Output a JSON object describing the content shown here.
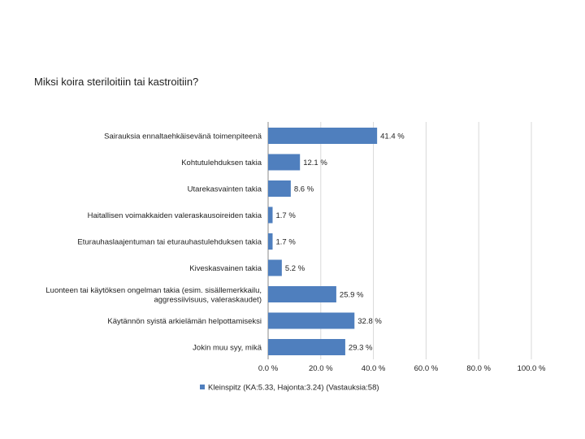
{
  "question": "Miksi koira steriloitiin tai kastroitiin?",
  "chart_data": {
    "type": "bar",
    "orientation": "horizontal",
    "categories": [
      [
        "Sairauksia ennaltaehkäisevänä toimenpiteenä"
      ],
      [
        "Kohtutulehduksen takia"
      ],
      [
        "Utarekasvainten takia"
      ],
      [
        "Haitallisen voimakkaiden valeraskausoireiden takia"
      ],
      [
        "Eturauhaslaajentuman tai eturauhastulehduksen takia"
      ],
      [
        "Kiveskasvainen takia"
      ],
      [
        "Luonteen tai käytöksen ongelman takia (esim. sisällemerkkailu,",
        "aggressiivisuus, valeraskaudet)"
      ],
      [
        "Käytännön syistä arkielämän helpottamiseksi"
      ],
      [
        "Jokin muu syy, mikä"
      ]
    ],
    "values": [
      41.4,
      12.1,
      8.6,
      1.7,
      1.7,
      5.2,
      25.9,
      32.8,
      29.3
    ],
    "value_labels": [
      "41.4 %",
      "12.1 %",
      "8.6 %",
      "1.7 %",
      "1.7 %",
      "5.2 %",
      "25.9 %",
      "32.8 %",
      "29.3 %"
    ],
    "xlim": [
      0,
      100
    ],
    "x_ticks": [
      0,
      20,
      40,
      60,
      80,
      100
    ],
    "x_tick_labels": [
      "0.0 %",
      "20.0 %",
      "40.0 %",
      "60.0 %",
      "80.0 %",
      "100.0 %"
    ],
    "grid": true,
    "legend": {
      "placement": "bottom",
      "entries": [
        "Kleinspitz (KA:5.33, Hajonta:3.24) (Vastauksia:58)"
      ]
    },
    "colors": {
      "bar": "#4f7fbe",
      "grid": "#d9d9d9",
      "axis": "#888888"
    }
  }
}
